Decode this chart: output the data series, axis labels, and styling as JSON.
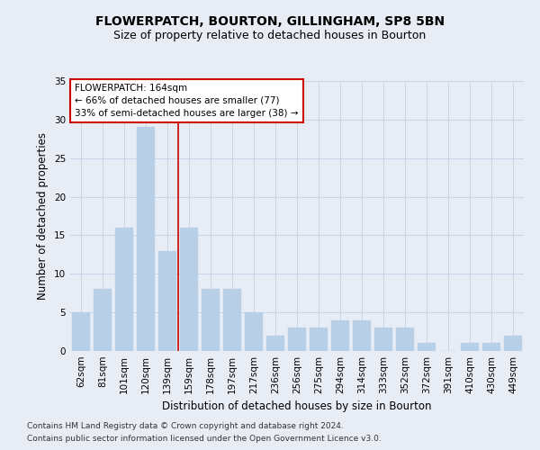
{
  "title": "FLOWERPATCH, BOURTON, GILLINGHAM, SP8 5BN",
  "subtitle": "Size of property relative to detached houses in Bourton",
  "xlabel": "Distribution of detached houses by size in Bourton",
  "ylabel": "Number of detached properties",
  "categories": [
    "62sqm",
    "81sqm",
    "101sqm",
    "120sqm",
    "139sqm",
    "159sqm",
    "178sqm",
    "197sqm",
    "217sqm",
    "236sqm",
    "256sqm",
    "275sqm",
    "294sqm",
    "314sqm",
    "333sqm",
    "352sqm",
    "372sqm",
    "391sqm",
    "410sqm",
    "430sqm",
    "449sqm"
  ],
  "values": [
    5,
    8,
    16,
    29,
    13,
    16,
    8,
    8,
    5,
    2,
    3,
    3,
    4,
    4,
    3,
    3,
    1,
    0,
    1,
    1,
    2
  ],
  "bar_color": "#b8cfe8",
  "bar_edge_color": "#b8cfe8",
  "grid_color": "#c8d4e8",
  "background_color": "#e8edf5",
  "annotation_text_line1": "FLOWERPATCH: 164sqm",
  "annotation_text_line2": "← 66% of detached houses are smaller (77)",
  "annotation_text_line3": "33% of semi-detached houses are larger (38) →",
  "annotation_box_facecolor": "#ffffff",
  "annotation_box_edgecolor": "#cc0000",
  "vline_color": "#cc0000",
  "vline_x": 5.0,
  "ylim": [
    0,
    35
  ],
  "yticks": [
    0,
    5,
    10,
    15,
    20,
    25,
    30,
    35
  ],
  "footnote_line1": "Contains HM Land Registry data © Crown copyright and database right 2024.",
  "footnote_line2": "Contains public sector information licensed under the Open Government Licence v3.0.",
  "title_fontsize": 10,
  "subtitle_fontsize": 9,
  "xlabel_fontsize": 8.5,
  "ylabel_fontsize": 8.5,
  "tick_fontsize": 7.5,
  "annot_fontsize": 7.5,
  "footnote_fontsize": 6.5
}
